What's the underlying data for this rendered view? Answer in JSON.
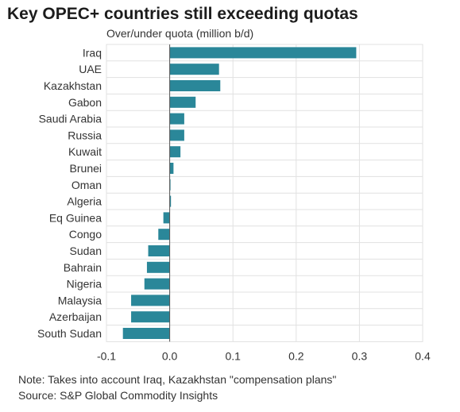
{
  "title": "Key OPEC+ countries still exceeding quotas",
  "subtitle": "Over/under quota (million b/d)",
  "notes": {
    "note": "Note: Takes into account Iraq, Kazakhstan \"compensation plans\"",
    "source": "Source: S&P Global Commodity Insights"
  },
  "colors": {
    "bar": "#2a8799",
    "grid": "#e1e1e1",
    "zero_line": "#555555"
  },
  "chart_data": {
    "type": "bar",
    "orientation": "horizontal",
    "categories": [
      "Iraq",
      "UAE",
      "Kazakhstan",
      "Gabon",
      "Saudi Arabia",
      "Russia",
      "Kuwait",
      "Brunei",
      "Oman",
      "Algeria",
      "Eq Guinea",
      "Congo",
      "Sudan",
      "Bahrain",
      "Nigeria",
      "Malaysia",
      "Azerbaijan",
      "South Sudan"
    ],
    "values": [
      0.295,
      0.078,
      0.08,
      0.041,
      0.023,
      0.023,
      0.017,
      0.006,
      0.001,
      0.002,
      -0.01,
      -0.018,
      -0.034,
      -0.036,
      -0.04,
      -0.061,
      -0.061,
      -0.074
    ],
    "xlabel": "Over/under quota (million b/d)",
    "ylabel": "",
    "xlim": [
      -0.1,
      0.4
    ],
    "xticks": [
      -0.1,
      0.0,
      0.1,
      0.2,
      0.3,
      0.4
    ],
    "xtick_labels": [
      "-0.1",
      "0.0",
      "0.1",
      "0.2",
      "0.3",
      "0.4"
    ],
    "grid": true
  }
}
